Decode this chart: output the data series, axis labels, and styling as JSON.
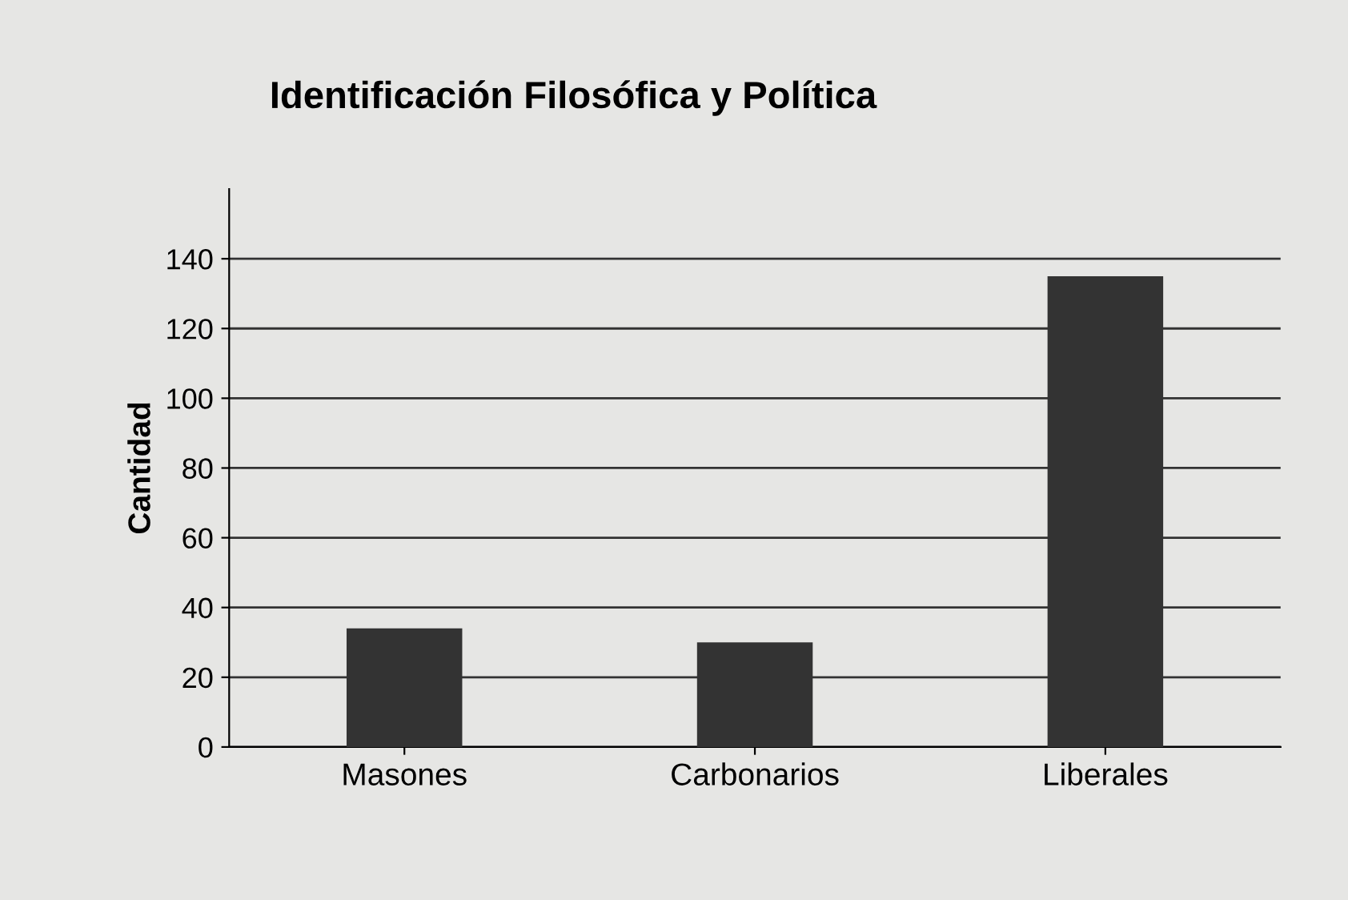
{
  "chart_data": {
    "type": "bar",
    "title": "Identificación Filosófica y Política",
    "ylabel": "Cantidad",
    "categories": [
      "Masones",
      "Carbonarios",
      "Liberales"
    ],
    "values": [
      34,
      30,
      135
    ],
    "color": "#333333",
    "ylim": [
      0,
      160
    ],
    "yticks": [
      0,
      20,
      40,
      60,
      80,
      100,
      120,
      140
    ],
    "grid": "y"
  }
}
